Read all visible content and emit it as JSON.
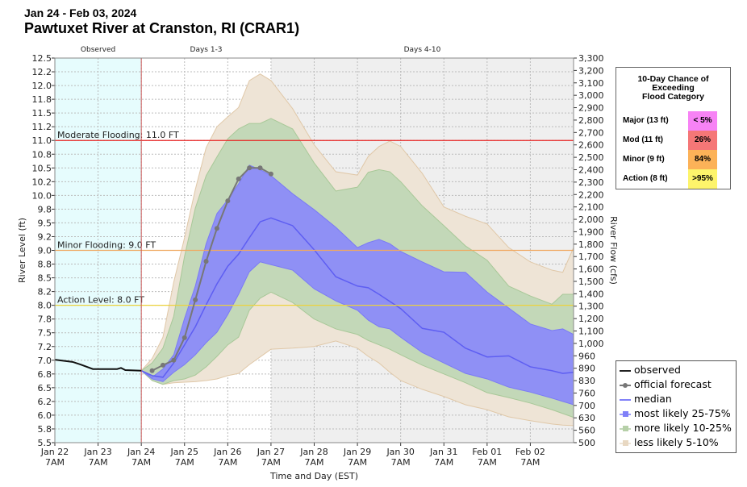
{
  "header": {
    "date_range": "Jan 24 - Feb 03, 2024",
    "title": "Pawtuxet River at Cranston, RI (CRAR1)"
  },
  "chart_data": {
    "type": "line",
    "title": "Pawtuxet River at Cranston, RI (CRAR1)",
    "xlabel": "Time and Day (EST)",
    "ylabel": "River Level (ft)",
    "ylabel_right": "River Flow (cfs)",
    "x_unit": "days since Jan 22 7AM",
    "xlim": [
      0,
      12
    ],
    "ylim": [
      5.5,
      12.5
    ],
    "grid": true,
    "x_ticks": [
      {
        "t": 0,
        "l1": "Jan 22",
        "l2": "7AM"
      },
      {
        "t": 1,
        "l1": "Jan 23",
        "l2": "7AM"
      },
      {
        "t": 2,
        "l1": "Jan 24",
        "l2": "7AM"
      },
      {
        "t": 3,
        "l1": "Jan 25",
        "l2": "7AM"
      },
      {
        "t": 4,
        "l1": "Jan 26",
        "l2": "7AM"
      },
      {
        "t": 5,
        "l1": "Jan 27",
        "l2": "7AM"
      },
      {
        "t": 6,
        "l1": "Jan 28",
        "l2": "7AM"
      },
      {
        "t": 7,
        "l1": "Jan 29",
        "l2": "7AM"
      },
      {
        "t": 8,
        "l1": "Jan 30",
        "l2": "7AM"
      },
      {
        "t": 9,
        "l1": "Jan 31",
        "l2": "7AM"
      },
      {
        "t": 10,
        "l1": "Feb 01",
        "l2": "7AM"
      },
      {
        "t": 11,
        "l1": "Feb 02",
        "l2": "7AM"
      }
    ],
    "y_tick_labels": [
      "12.5",
      "12.2",
      "12.0",
      "11.8",
      "11.5",
      "11.2",
      "11.0",
      "10.8",
      "10.5",
      "10.2",
      "10.0",
      "9.8",
      "9.5",
      "9.2",
      "9.0",
      "8.8",
      "8.5",
      "8.2",
      "8.0",
      "7.8",
      "7.5",
      "7.2",
      "7.0",
      "6.8",
      "6.5",
      "6.2",
      "6.0",
      "5.8",
      "5.5"
    ],
    "y_right_tick_labels": [
      "3,300",
      "3,200",
      "3,100",
      "3,000",
      "2,900",
      "2,800",
      "2,700",
      "2,600",
      "2,500",
      "2,400",
      "2,300",
      "2,200",
      "2,100",
      "2,000",
      "1,900",
      "1,800",
      "1,700",
      "1,600",
      "1,500",
      "1,400",
      "1,300",
      "1,200",
      "1,100",
      "1,000",
      "960",
      "890",
      "830",
      "760",
      "700",
      "630",
      "560",
      "500"
    ],
    "periods": [
      {
        "label": "Observed",
        "start": 0,
        "end": 2,
        "color": "#e6fcfd"
      },
      {
        "label": "Days 1-3",
        "start": 2,
        "end": 5,
        "color": "#ffffff"
      },
      {
        "label": "Days 4-10",
        "start": 5,
        "end": 12,
        "color": "#efefef"
      }
    ],
    "thresholds": [
      {
        "label": "Moderate Flooding: 11.0 FT",
        "value": 11.0,
        "color": "#e8211f"
      },
      {
        "label": "Minor Flooding: 9.0 FT",
        "value": 9.0,
        "color": "#f0a860"
      },
      {
        "label": "Action Level: 8.0 FT",
        "value": 8.0,
        "color": "#ecd23c"
      }
    ],
    "band_t": [
      2,
      2.25,
      2.5,
      2.75,
      3,
      3.25,
      3.5,
      3.75,
      4,
      4.25,
      4.5,
      4.75,
      5,
      5.5,
      6,
      6.5,
      7,
      7.25,
      7.5,
      7.75,
      8,
      8.5,
      9,
      9.5,
      10,
      10.5,
      11,
      11.5,
      11.75,
      12
    ],
    "series": [
      {
        "name": "observed",
        "color": "#000000",
        "points": [
          [
            0,
            7.01
          ],
          [
            0.41,
            6.97
          ],
          [
            0.6,
            6.92
          ],
          [
            0.88,
            6.84
          ],
          [
            1.07,
            6.84
          ],
          [
            1.44,
            6.84
          ],
          [
            1.53,
            6.86
          ],
          [
            1.63,
            6.82
          ],
          [
            2.0,
            6.81
          ]
        ]
      },
      {
        "name": "official forecast",
        "color": "#777777",
        "points": [
          [
            2.25,
            6.81
          ],
          [
            2.5,
            6.91
          ],
          [
            2.75,
            7.0
          ],
          [
            3.0,
            7.41
          ],
          [
            3.25,
            8.1
          ],
          [
            3.5,
            8.8
          ],
          [
            3.75,
            9.4
          ],
          [
            4.0,
            9.9
          ],
          [
            4.25,
            10.3
          ],
          [
            4.5,
            10.5
          ],
          [
            4.75,
            10.5
          ],
          [
            5.0,
            10.39
          ]
        ]
      },
      {
        "name": "median",
        "color": "#6f6ff5",
        "values": [
          6.81,
          6.72,
          6.69,
          6.95,
          7.28,
          7.61,
          8.01,
          8.39,
          8.71,
          8.93,
          9.23,
          9.52,
          9.59,
          9.45,
          9.01,
          8.52,
          8.35,
          8.32,
          8.2,
          8.07,
          7.94,
          7.58,
          7.51,
          7.22,
          7.06,
          7.08,
          6.88,
          6.81,
          6.76,
          6.78
        ]
      },
      {
        "name": "most likely 25-75%",
        "color": "#8c8cf8",
        "lower": [
          6.81,
          6.66,
          6.61,
          6.78,
          6.92,
          7.1,
          7.32,
          7.51,
          7.83,
          8.2,
          8.61,
          8.79,
          8.74,
          8.64,
          8.3,
          8.08,
          7.91,
          7.73,
          7.61,
          7.57,
          7.42,
          7.14,
          6.95,
          6.76,
          6.66,
          6.51,
          6.42,
          6.31,
          6.25,
          6.19
        ],
        "upper": [
          6.81,
          6.69,
          6.84,
          7.1,
          7.76,
          8.35,
          9.12,
          9.67,
          9.92,
          10.21,
          10.55,
          10.47,
          10.36,
          10.03,
          9.74,
          9.42,
          9.05,
          9.14,
          9.2,
          9.12,
          8.98,
          8.79,
          8.61,
          8.6,
          8.24,
          7.95,
          7.66,
          7.54,
          7.57,
          7.47
        ]
      },
      {
        "name": "more likely 10-25%",
        "color": "#c3d8b8",
        "lower": [
          6.81,
          6.63,
          6.56,
          6.63,
          6.66,
          6.73,
          6.88,
          7.07,
          7.28,
          7.42,
          7.91,
          8.13,
          8.24,
          8.05,
          7.75,
          7.57,
          7.47,
          7.36,
          7.28,
          7.2,
          7.1,
          6.91,
          6.75,
          6.59,
          6.41,
          6.32,
          6.22,
          6.1,
          6.03,
          5.96
        ],
        "upper": [
          6.81,
          6.95,
          7.22,
          7.8,
          8.89,
          9.77,
          10.36,
          10.7,
          11.03,
          11.21,
          11.31,
          11.31,
          11.4,
          11.21,
          10.59,
          10.08,
          10.15,
          10.42,
          10.47,
          10.43,
          10.25,
          9.81,
          9.45,
          9.08,
          8.82,
          8.35,
          8.17,
          8.02,
          8.2,
          8.2
        ]
      },
      {
        "name": "less likely 5-10%",
        "color": "#eee4d6",
        "lower": [
          6.81,
          6.63,
          6.56,
          6.59,
          6.6,
          6.61,
          6.63,
          6.66,
          6.72,
          6.76,
          6.92,
          7.06,
          7.2,
          7.22,
          7.25,
          7.35,
          7.22,
          7.07,
          6.95,
          6.78,
          6.63,
          6.47,
          6.34,
          6.19,
          6.1,
          5.97,
          5.9,
          5.84,
          5.82,
          5.81
        ],
        "upper": [
          6.81,
          7.03,
          7.42,
          8.42,
          9.23,
          10.11,
          10.87,
          11.25,
          11.43,
          11.6,
          12.09,
          12.21,
          12.09,
          11.58,
          10.92,
          10.43,
          10.37,
          10.71,
          10.89,
          10.99,
          10.89,
          10.4,
          9.79,
          9.62,
          9.48,
          9.05,
          8.79,
          8.64,
          8.6,
          9.05
        ]
      }
    ],
    "legend_placement": "bottom-right"
  },
  "flood_chance": {
    "title_lines": [
      "10-Day Chance of",
      "Exceeding",
      "Flood Category"
    ],
    "rows": [
      {
        "label": "Major (13 ft)",
        "value": "< 5%",
        "color": "#f783f5"
      },
      {
        "label": "Mod (11 ft)",
        "value": "26%",
        "color": "#f57777"
      },
      {
        "label": "Minor (9 ft)",
        "value": "84%",
        "color": "#fcb258"
      },
      {
        "label": "Action (8 ft)",
        "value": ">95%",
        "color": "#fdf46b"
      }
    ]
  },
  "legend": {
    "items": [
      "observed",
      "official forecast",
      "median",
      "most likely 25-75%",
      "more likely 10-25%",
      "less likely 5-10%"
    ]
  }
}
